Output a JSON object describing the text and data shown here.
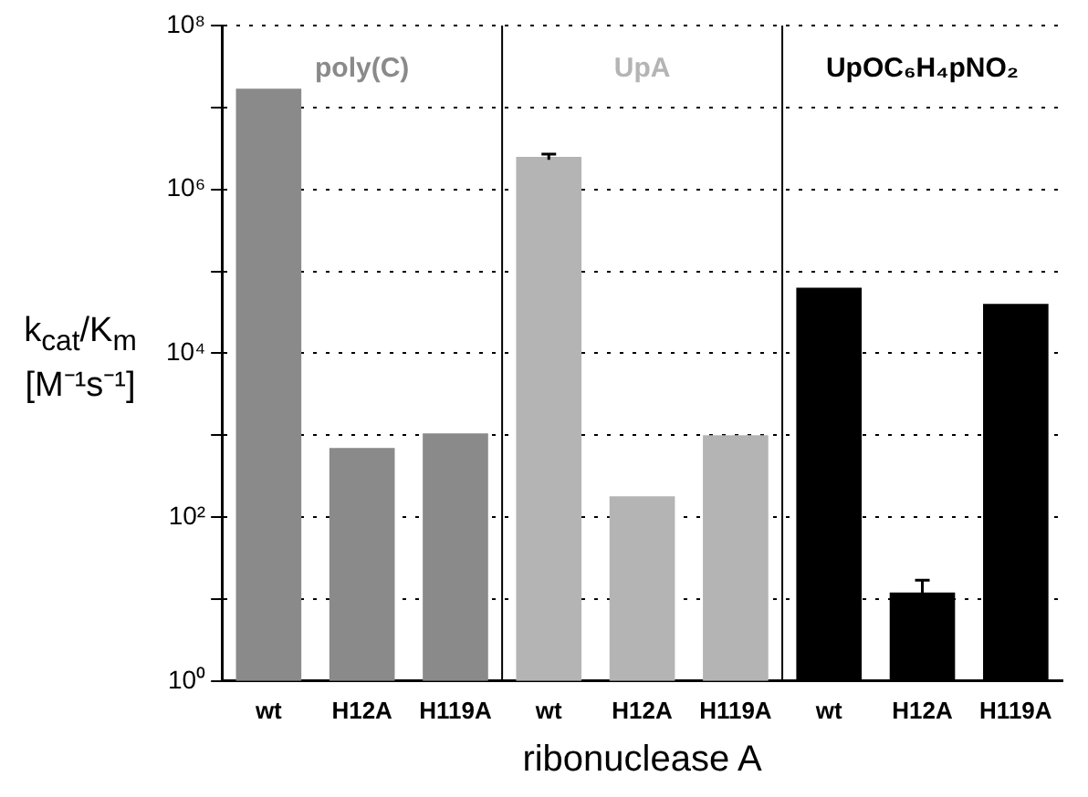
{
  "chart_data": {
    "type": "bar",
    "xlabel": "ribonuclease A",
    "ylabel": "k$_{cat}$/K$_{m}$ [M⁻¹s⁻¹]",
    "categories": [
      "wt",
      "H12A",
      "H119A",
      "wt",
      "H12A",
      "H119A",
      "wt",
      "H12A",
      "H119A"
    ],
    "series": [
      {
        "name": "poly(C)",
        "color": "#8a8a8a",
        "values": [
          17000000,
          700,
          1050,
          null,
          null,
          null,
          null,
          null,
          null
        ],
        "errors": [
          null,
          null,
          null,
          null,
          null,
          null,
          null,
          null,
          null
        ]
      },
      {
        "name": "UpA",
        "color": "#b4b4b4",
        "values": [
          null,
          null,
          null,
          2500000,
          180,
          1000,
          null,
          null,
          null
        ],
        "errors": [
          null,
          null,
          null,
          200000,
          null,
          null,
          null,
          null,
          null
        ]
      },
      {
        "name": "UpOC₆H₄pNO₂",
        "color": "#000000",
        "values": [
          null,
          null,
          null,
          null,
          null,
          null,
          63000,
          12,
          40000
        ],
        "errors": [
          null,
          null,
          null,
          null,
          null,
          null,
          null,
          5,
          null
        ]
      }
    ],
    "log": "y",
    "ylim": [
      1,
      100000000
    ],
    "yticks": [
      {
        "value": 1,
        "label": "10⁰"
      },
      {
        "value": 10,
        "label": null
      },
      {
        "value": 100,
        "label": "10²"
      },
      {
        "value": 1000,
        "label": null
      },
      {
        "value": 10000,
        "label": "10⁴"
      },
      {
        "value": 100000,
        "label": null
      },
      {
        "value": 1000000,
        "label": "10⁶"
      },
      {
        "value": 10000000,
        "label": null
      },
      {
        "value": 100000000,
        "label": "10⁸"
      }
    ],
    "grid": "y",
    "legend": false
  }
}
